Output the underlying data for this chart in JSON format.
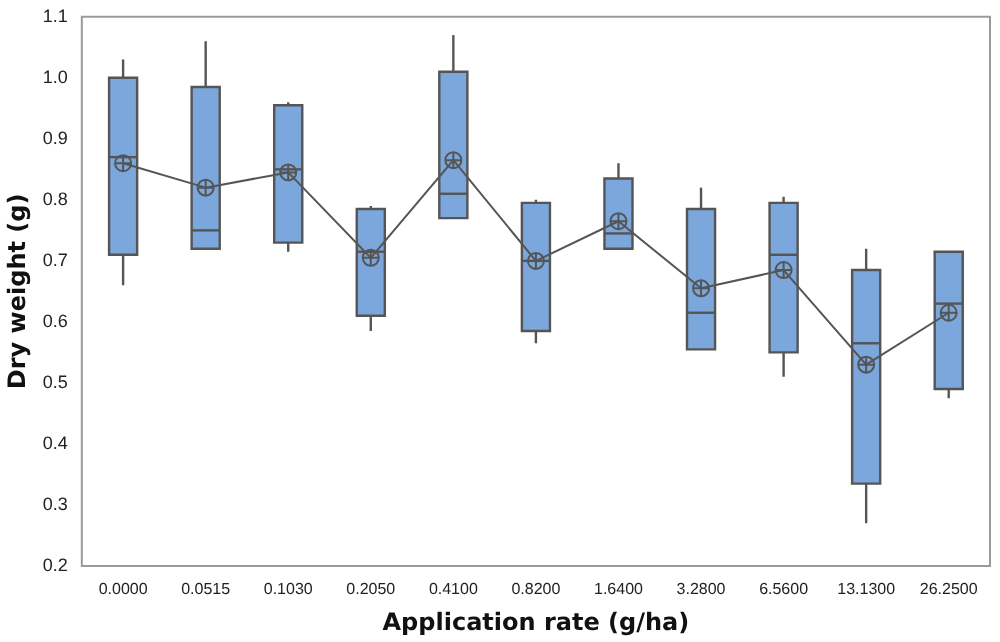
{
  "chart_data": {
    "type": "box",
    "xlabel": "Application rate (g/ha)",
    "ylabel": "Dry weight (g)",
    "color": "#7ba7dc",
    "marker": "circle",
    "categories": [
      "0.0000",
      "0.0515",
      "0.1030",
      "0.2050",
      "0.4100",
      "0.8200",
      "1.6400",
      "3.2800",
      "6.5600",
      "13.1300",
      "26.2500"
    ],
    "ylim": [
      0.2,
      1.1
    ],
    "yticks": [
      0.2,
      0.3,
      0.4,
      0.5,
      0.6,
      0.7,
      0.8,
      0.9,
      {
        "value": 1,
        "label": "1.0"
      },
      1.1
    ],
    "boxes": [
      {
        "low": 0.66,
        "q1": 0.71,
        "median": 0.87,
        "q3": 1.0,
        "high": 1.03
      },
      {
        "low": 0.72,
        "q1": 0.72,
        "median": 0.75,
        "q3": 0.985,
        "high": 1.06
      },
      {
        "low": 0.715,
        "q1": 0.73,
        "median": 0.85,
        "q3": 0.955,
        "high": 0.96
      },
      {
        "low": 0.585,
        "q1": 0.61,
        "median": 0.715,
        "q3": 0.785,
        "high": 0.79
      },
      {
        "low": 0.77,
        "q1": 0.77,
        "median": 0.81,
        "q3": 1.01,
        "high": 1.07
      },
      {
        "low": 0.565,
        "q1": 0.585,
        "median": 0.7,
        "q3": 0.795,
        "high": 0.8
      },
      {
        "low": 0.72,
        "q1": 0.72,
        "median": 0.745,
        "q3": 0.835,
        "high": 0.86
      },
      {
        "low": 0.555,
        "q1": 0.555,
        "median": 0.615,
        "q3": 0.785,
        "high": 0.82
      },
      {
        "low": 0.51,
        "q1": 0.55,
        "median": 0.71,
        "q3": 0.795,
        "high": 0.805
      },
      {
        "low": 0.27,
        "q1": 0.335,
        "median": 0.565,
        "q3": 0.685,
        "high": 0.72
      },
      {
        "low": 0.475,
        "q1": 0.49,
        "median": 0.63,
        "q3": 0.715,
        "high": 0.715
      }
    ],
    "series": [
      {
        "type": "line",
        "color": "#555555",
        "values": [
          0.86,
          0.82,
          0.845,
          0.705,
          0.865,
          0.7,
          0.765,
          0.655,
          0.685,
          0.53,
          0.615
        ]
      }
    ]
  }
}
